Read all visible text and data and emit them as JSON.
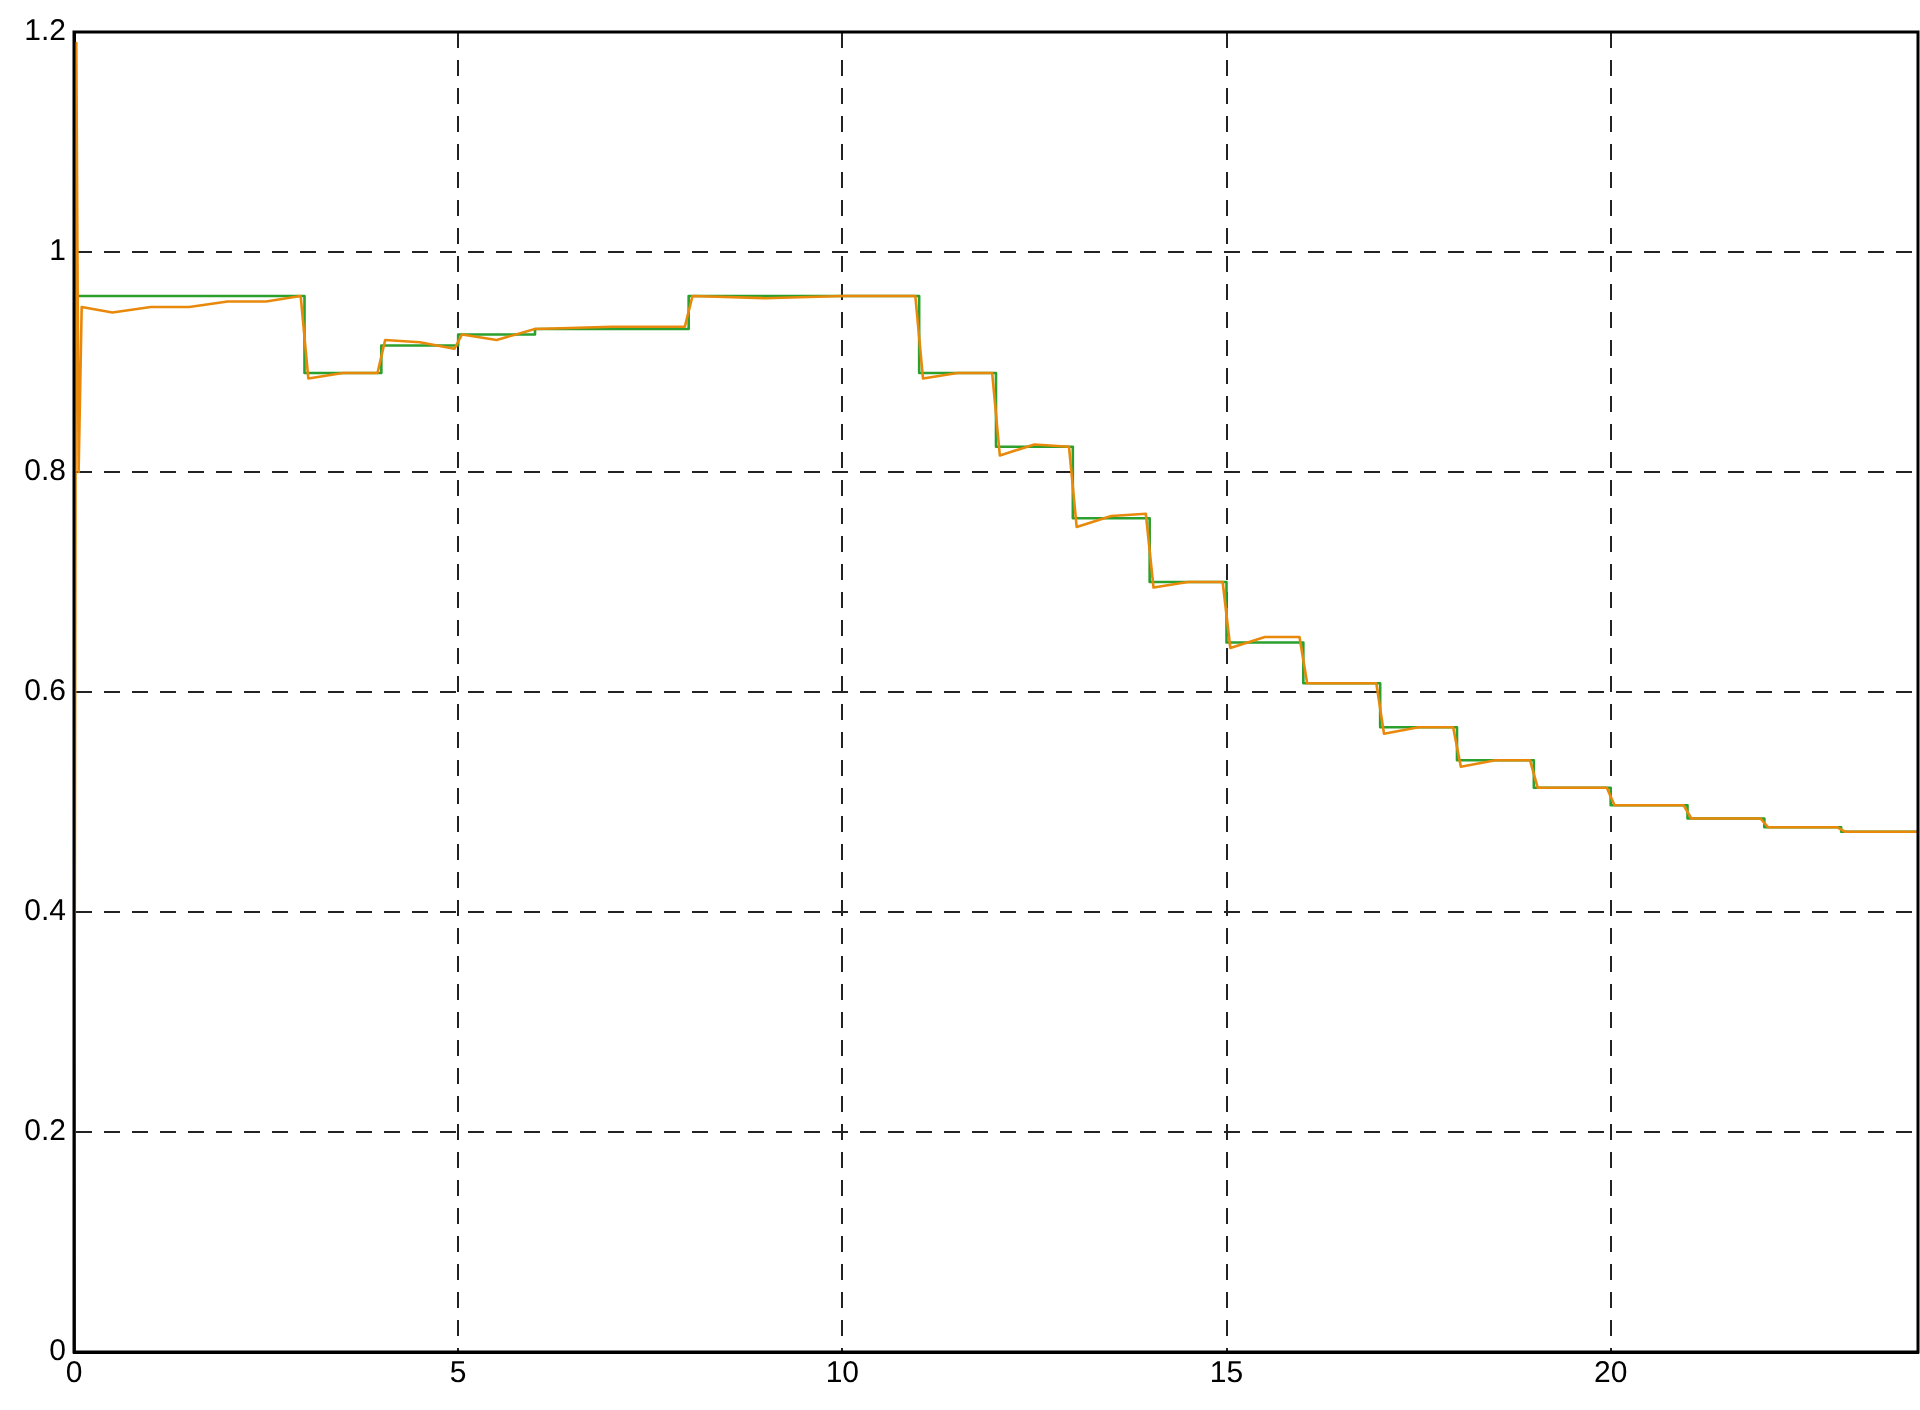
{
  "chart_data": {
    "type": "line",
    "xlim": [
      0,
      24
    ],
    "xticks": [
      0,
      5,
      10,
      15,
      20
    ],
    "ylim": [
      0,
      1.2
    ],
    "yticks": [
      0,
      0.2,
      0.4,
      0.6,
      0.8,
      1,
      1.2
    ],
    "grid": true,
    "legend": false,
    "series": [
      {
        "type": "step",
        "color": "#2ca02c",
        "x": [
          0,
          3,
          4,
          5,
          6,
          8,
          11,
          12,
          13,
          14,
          15,
          16,
          17,
          18,
          19,
          20,
          21,
          22,
          23,
          24
        ],
        "values": [
          0.96,
          0.89,
          0.915,
          0.925,
          0.93,
          0.96,
          0.89,
          0.823,
          0.758,
          0.7,
          0.645,
          0.608,
          0.568,
          0.538,
          0.513,
          0.497,
          0.485,
          0.477,
          0.473,
          0.473
        ]
      },
      {
        "type": "line",
        "color": "#e8890c",
        "x": [
          0,
          0.03,
          0.06,
          0.1,
          0.5,
          1,
          1.5,
          2,
          2.5,
          2.95,
          3.05,
          3.5,
          3.95,
          4.05,
          4.5,
          4.95,
          5.05,
          5.5,
          6,
          7,
          7.95,
          8.05,
          9,
          10,
          10.95,
          11.05,
          11.5,
          11.95,
          12.05,
          12.5,
          12.95,
          13.05,
          13.5,
          13.95,
          14.05,
          14.5,
          14.95,
          15.05,
          15.5,
          15.95,
          16.05,
          16.5,
          16.95,
          17.05,
          17.5,
          17.95,
          18.05,
          18.5,
          18.95,
          19.05,
          19.5,
          19.95,
          20.05,
          20.5,
          20.95,
          21.05,
          21.5,
          21.95,
          22.05,
          22.95,
          23.05,
          24
        ],
        "values": [
          0,
          1.19,
          0.8,
          0.95,
          0.945,
          0.95,
          0.95,
          0.955,
          0.955,
          0.96,
          0.885,
          0.89,
          0.89,
          0.92,
          0.918,
          0.912,
          0.925,
          0.92,
          0.93,
          0.932,
          0.932,
          0.96,
          0.958,
          0.96,
          0.96,
          0.885,
          0.89,
          0.89,
          0.815,
          0.825,
          0.823,
          0.75,
          0.76,
          0.762,
          0.695,
          0.7,
          0.7,
          0.64,
          0.65,
          0.65,
          0.608,
          0.608,
          0.608,
          0.562,
          0.568,
          0.568,
          0.532,
          0.538,
          0.538,
          0.513,
          0.513,
          0.513,
          0.497,
          0.497,
          0.497,
          0.485,
          0.485,
          0.485,
          0.477,
          0.477,
          0.473,
          0.473
        ]
      }
    ]
  }
}
